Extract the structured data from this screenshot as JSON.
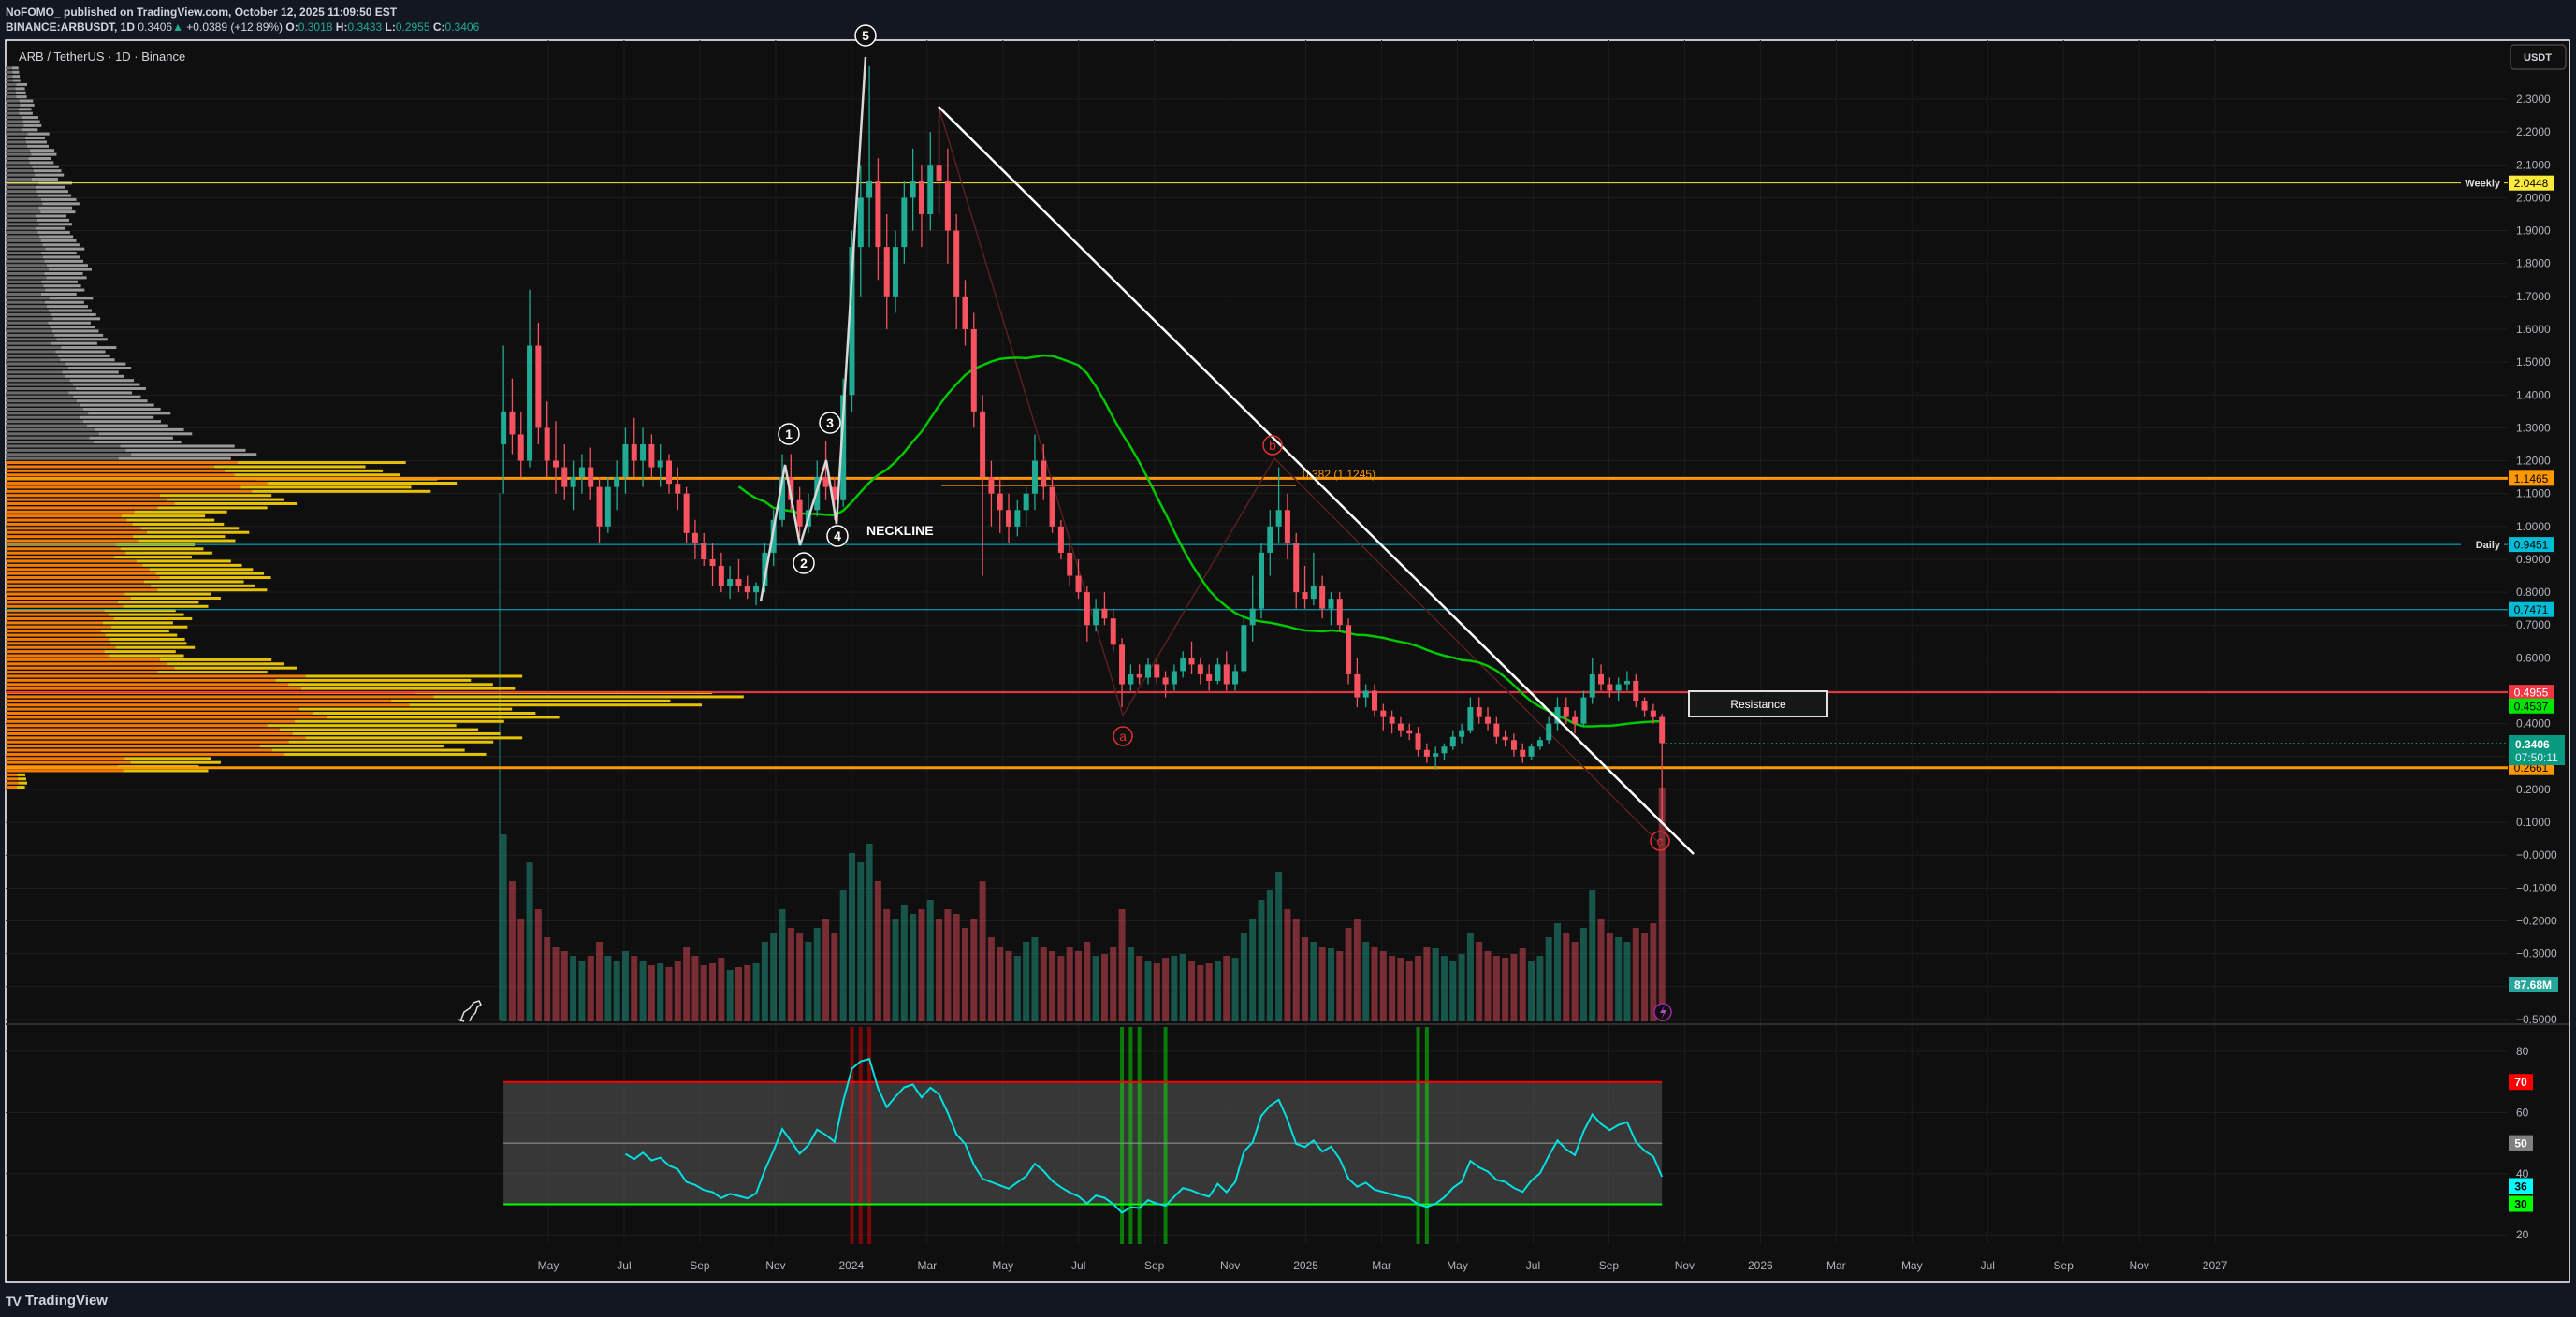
{
  "header": {
    "line1": "NoFOMO_ published on TradingView.com, October 12, 2025 11:09:50 EST",
    "symbol": "BINANCE:ARBUSDT, 1D",
    "last": "0.3406",
    "arrow": "▲",
    "change": "+0.0389 (+12.89%)",
    "o_label": "O:",
    "o": "0.3018",
    "h_label": "H:",
    "h": "0.3433",
    "l_label": "L:",
    "l": "0.2955",
    "c_label": "C:",
    "c": "0.3406"
  },
  "chart": {
    "legend": "ARB / TetherUS · 1D · Binance",
    "currency": "USDT",
    "colors": {
      "up": "#22ab94",
      "down": "#f7525f",
      "ma": "#00c800",
      "rsi": "#00e0e0",
      "background": "#0f0f0f"
    }
  },
  "price_axis": {
    "ticks": [
      "2.3000",
      "2.2000",
      "2.1000",
      "2.0000",
      "1.9000",
      "1.8000",
      "1.7000",
      "1.6000",
      "1.5000",
      "1.4000",
      "1.3000",
      "1.2000",
      "1.1000",
      "1.0000",
      "0.9000",
      "0.8000",
      "0.7000",
      "0.6000",
      "0.4000",
      "0.2000",
      "0.1000",
      "−0.0000",
      "−0.1000",
      "−0.2000",
      "−0.3000",
      "−0.5000"
    ]
  },
  "levels": [
    {
      "label": "Weekly",
      "value": "2.0448",
      "price": 2.0448,
      "color": "#ffeb3b",
      "text_color": "#000000",
      "weight": 1
    },
    {
      "label": "",
      "value": "1.1465",
      "price": 1.1465,
      "color": "#ff9800",
      "text_color": "#000000",
      "weight": 3
    },
    {
      "label": "Daily",
      "value": "0.9451",
      "price": 0.9451,
      "color": "#00bcd4",
      "text_color": "#000000",
      "weight": 1
    },
    {
      "label": "",
      "value": "0.7471",
      "price": 0.7471,
      "color": "#00bcd4",
      "text_color": "#000000",
      "weight": 1
    },
    {
      "label": "",
      "value": "0.4955",
      "price": 0.4955,
      "color": "#f23645",
      "text_color": "#ffffff",
      "weight": 2
    },
    {
      "label": "",
      "value": "0.2661",
      "price": 0.2661,
      "color": "#ff9800",
      "text_color": "#000000",
      "weight": 3
    }
  ],
  "ma_label": {
    "value": "0.4537",
    "price": 0.4537,
    "color": "#00e600"
  },
  "last_price": {
    "value": "0.3406",
    "price": 0.3406,
    "countdown": "07:50:11",
    "color": "#089981"
  },
  "volume_label": {
    "value": "87.68M",
    "color": "#26a69a"
  },
  "annotations": {
    "waves": [
      "1",
      "2",
      "3",
      "4",
      "5"
    ],
    "neckline": "NECKLINE",
    "abc": [
      "a",
      "b",
      "c"
    ],
    "fib": "0.382 (1.1245)",
    "resistance": "Resistance"
  },
  "rsi": {
    "ticks": [
      "80",
      "60",
      "40",
      "20"
    ],
    "upper": "70",
    "mid": "50",
    "value": "36",
    "lower": "30",
    "upper_color": "#ff0000",
    "mid_color": "#787878",
    "value_color": "#00ffff",
    "lower_color": "#00ff00"
  },
  "time_axis": {
    "labels": [
      "May",
      "Jul",
      "Sep",
      "Nov",
      "2024",
      "Mar",
      "May",
      "Jul",
      "Sep",
      "Nov",
      "2025",
      "Mar",
      "May",
      "Jul",
      "Sep",
      "Nov",
      "2026",
      "Mar",
      "May",
      "Jul",
      "Sep",
      "Nov",
      "2027"
    ]
  },
  "footer": {
    "logo": "TradingView",
    "logo_mark": "TV"
  },
  "chart_data": {
    "type": "candlestick",
    "symbol": "ARBUSDT",
    "ylim": [
      -0.5,
      2.3
    ],
    "grid": true,
    "volume_profile": [
      [
        2.35,
        2
      ],
      [
        2.3,
        3
      ],
      [
        2.25,
        4
      ],
      [
        2.2,
        5
      ],
      [
        2.15,
        6
      ],
      [
        2.1,
        7
      ],
      [
        2.05,
        8
      ],
      [
        2.0,
        9
      ],
      [
        1.95,
        10
      ],
      [
        1.9,
        9
      ],
      [
        1.85,
        10
      ],
      [
        1.8,
        11
      ],
      [
        1.75,
        12
      ],
      [
        1.7,
        11
      ],
      [
        1.65,
        12
      ],
      [
        1.6,
        13
      ],
      [
        1.55,
        14
      ],
      [
        1.5,
        15
      ],
      [
        1.45,
        17
      ],
      [
        1.4,
        19
      ],
      [
        1.35,
        21
      ],
      [
        1.3,
        23
      ],
      [
        1.25,
        26
      ],
      [
        1.2,
        35
      ],
      [
        1.15,
        55
      ],
      [
        1.1,
        62
      ],
      [
        1.05,
        40
      ],
      [
        1.0,
        30
      ],
      [
        0.95,
        33
      ],
      [
        0.9,
        28
      ],
      [
        0.85,
        35
      ],
      [
        0.8,
        37
      ],
      [
        0.75,
        30
      ],
      [
        0.7,
        26
      ],
      [
        0.65,
        25
      ],
      [
        0.6,
        26
      ],
      [
        0.55,
        40
      ],
      [
        0.5,
        70
      ],
      [
        0.45,
        100
      ],
      [
        0.4,
        75
      ],
      [
        0.35,
        70
      ],
      [
        0.3,
        68
      ],
      [
        0.25,
        30
      ],
      [
        0.2,
        3
      ]
    ],
    "candles_columns": [
      "date",
      "open",
      "high",
      "low",
      "close",
      "volume_M"
    ],
    "candles": [
      [
        "2023-03-23",
        1.25,
        1.55,
        1.1,
        1.35,
        200
      ],
      [
        "2023-03-30",
        1.35,
        1.45,
        1.22,
        1.28,
        150
      ],
      [
        "2023-04-06",
        1.28,
        1.35,
        1.15,
        1.2,
        110
      ],
      [
        "2023-04-13",
        1.2,
        1.72,
        1.18,
        1.55,
        170
      ],
      [
        "2023-04-20",
        1.55,
        1.62,
        1.25,
        1.3,
        120
      ],
      [
        "2023-04-27",
        1.3,
        1.38,
        1.15,
        1.2,
        90
      ],
      [
        "2023-05-04",
        1.2,
        1.32,
        1.1,
        1.18,
        80
      ],
      [
        "2023-05-11",
        1.18,
        1.25,
        1.08,
        1.12,
        75
      ],
      [
        "2023-05-18",
        1.12,
        1.2,
        1.05,
        1.15,
        70
      ],
      [
        "2023-05-25",
        1.15,
        1.22,
        1.1,
        1.18,
        65
      ],
      [
        "2023-06-01",
        1.18,
        1.24,
        1.08,
        1.12,
        70
      ],
      [
        "2023-06-08",
        1.12,
        1.15,
        0.95,
        1.0,
        85
      ],
      [
        "2023-06-15",
        1.0,
        1.15,
        0.98,
        1.12,
        70
      ],
      [
        "2023-06-22",
        1.12,
        1.2,
        1.05,
        1.15,
        65
      ],
      [
        "2023-06-29",
        1.15,
        1.3,
        1.1,
        1.25,
        75
      ],
      [
        "2023-07-06",
        1.25,
        1.33,
        1.15,
        1.2,
        70
      ],
      [
        "2023-07-13",
        1.2,
        1.3,
        1.12,
        1.25,
        65
      ],
      [
        "2023-07-20",
        1.25,
        1.28,
        1.15,
        1.18,
        60
      ],
      [
        "2023-07-27",
        1.18,
        1.25,
        1.12,
        1.2,
        62
      ],
      [
        "2023-08-03",
        1.2,
        1.22,
        1.1,
        1.13,
        58
      ],
      [
        "2023-08-10",
        1.13,
        1.18,
        1.05,
        1.1,
        65
      ],
      [
        "2023-08-17",
        1.1,
        1.12,
        0.95,
        0.98,
        80
      ],
      [
        "2023-08-24",
        0.98,
        1.02,
        0.9,
        0.95,
        70
      ],
      [
        "2023-08-31",
        0.95,
        0.98,
        0.88,
        0.9,
        60
      ],
      [
        "2023-09-07",
        0.9,
        0.95,
        0.82,
        0.88,
        62
      ],
      [
        "2023-09-14",
        0.88,
        0.92,
        0.8,
        0.82,
        68
      ],
      [
        "2023-09-21",
        0.82,
        0.88,
        0.78,
        0.84,
        55
      ],
      [
        "2023-09-28",
        0.84,
        0.9,
        0.8,
        0.82,
        58
      ],
      [
        "2023-10-05",
        0.82,
        0.85,
        0.78,
        0.8,
        60
      ],
      [
        "2023-10-12",
        0.8,
        0.83,
        0.76,
        0.82,
        62
      ],
      [
        "2023-10-19",
        0.82,
        0.95,
        0.8,
        0.92,
        85
      ],
      [
        "2023-10-26",
        0.92,
        1.05,
        0.88,
        1.02,
        95
      ],
      [
        "2023-11-02",
        1.02,
        1.22,
        1.0,
        1.15,
        120
      ],
      [
        "2023-11-09",
        1.15,
        1.22,
        1.05,
        1.08,
        100
      ],
      [
        "2023-11-16",
        1.08,
        1.12,
        0.97,
        1.0,
        95
      ],
      [
        "2023-11-23",
        1.0,
        1.1,
        0.98,
        1.05,
        85
      ],
      [
        "2023-11-30",
        1.05,
        1.2,
        1.03,
        1.15,
        100
      ],
      [
        "2023-12-07",
        1.15,
        1.26,
        1.08,
        1.12,
        110
      ],
      [
        "2023-12-14",
        1.12,
        1.15,
        1.02,
        1.08,
        95
      ],
      [
        "2023-12-21",
        1.08,
        1.45,
        1.06,
        1.4,
        140
      ],
      [
        "2023-12-28",
        1.4,
        1.9,
        1.35,
        1.85,
        180
      ],
      [
        "2024-01-04",
        1.85,
        2.1,
        1.7,
        2.0,
        170
      ],
      [
        "2024-01-11",
        2.0,
        2.4,
        1.85,
        2.05,
        190
      ],
      [
        "2024-01-18",
        2.05,
        2.12,
        1.75,
        1.85,
        150
      ],
      [
        "2024-01-25",
        1.85,
        1.95,
        1.6,
        1.7,
        120
      ],
      [
        "2024-02-01",
        1.7,
        1.9,
        1.65,
        1.85,
        110
      ],
      [
        "2024-02-08",
        1.85,
        2.05,
        1.8,
        2.0,
        125
      ],
      [
        "2024-02-15",
        2.0,
        2.15,
        1.9,
        2.05,
        115
      ],
      [
        "2024-02-22",
        2.05,
        2.1,
        1.85,
        1.95,
        120
      ],
      [
        "2024-02-29",
        1.95,
        2.2,
        1.9,
        2.1,
        130
      ],
      [
        "2024-03-07",
        2.1,
        2.28,
        1.95,
        2.05,
        110
      ],
      [
        "2024-03-14",
        2.05,
        2.15,
        1.8,
        1.9,
        120
      ],
      [
        "2024-03-21",
        1.9,
        1.95,
        1.6,
        1.7,
        115
      ],
      [
        "2024-03-28",
        1.7,
        1.75,
        1.55,
        1.6,
        100
      ],
      [
        "2024-04-04",
        1.6,
        1.65,
        1.3,
        1.35,
        110
      ],
      [
        "2024-04-11",
        1.35,
        1.4,
        0.85,
        1.15,
        150
      ],
      [
        "2024-04-18",
        1.15,
        1.2,
        1.0,
        1.1,
        90
      ],
      [
        "2024-04-25",
        1.1,
        1.15,
        0.98,
        1.05,
        80
      ],
      [
        "2024-05-02",
        1.05,
        1.1,
        0.95,
        1.0,
        75
      ],
      [
        "2024-05-09",
        1.0,
        1.08,
        0.97,
        1.05,
        70
      ],
      [
        "2024-05-16",
        1.05,
        1.12,
        1.0,
        1.1,
        85
      ],
      [
        "2024-05-23",
        1.1,
        1.28,
        1.05,
        1.2,
        90
      ],
      [
        "2024-05-30",
        1.2,
        1.25,
        1.08,
        1.12,
        80
      ],
      [
        "2024-06-06",
        1.12,
        1.15,
        0.98,
        1.0,
        75
      ],
      [
        "2024-06-13",
        1.0,
        1.02,
        0.9,
        0.92,
        70
      ],
      [
        "2024-06-20",
        0.92,
        0.95,
        0.82,
        0.85,
        80
      ],
      [
        "2024-06-27",
        0.85,
        0.9,
        0.78,
        0.8,
        75
      ],
      [
        "2024-07-04",
        0.8,
        0.82,
        0.65,
        0.7,
        85
      ],
      [
        "2024-07-11",
        0.7,
        0.78,
        0.68,
        0.75,
        70
      ],
      [
        "2024-07-18",
        0.75,
        0.8,
        0.7,
        0.72,
        72
      ],
      [
        "2024-07-25",
        0.72,
        0.75,
        0.62,
        0.64,
        80
      ],
      [
        "2024-08-01",
        0.64,
        0.66,
        0.45,
        0.52,
        120
      ],
      [
        "2024-08-08",
        0.52,
        0.58,
        0.5,
        0.55,
        80
      ],
      [
        "2024-08-15",
        0.55,
        0.58,
        0.52,
        0.54,
        70
      ],
      [
        "2024-08-22",
        0.54,
        0.6,
        0.52,
        0.58,
        65
      ],
      [
        "2024-08-29",
        0.58,
        0.6,
        0.52,
        0.54,
        62
      ],
      [
        "2024-09-05",
        0.54,
        0.56,
        0.48,
        0.52,
        68
      ],
      [
        "2024-09-12",
        0.52,
        0.58,
        0.5,
        0.56,
        70
      ],
      [
        "2024-09-19",
        0.56,
        0.62,
        0.54,
        0.6,
        72
      ],
      [
        "2024-09-26",
        0.6,
        0.65,
        0.55,
        0.58,
        65
      ],
      [
        "2024-10-03",
        0.58,
        0.6,
        0.52,
        0.55,
        60
      ],
      [
        "2024-10-10",
        0.55,
        0.58,
        0.5,
        0.53,
        62
      ],
      [
        "2024-10-17",
        0.53,
        0.6,
        0.52,
        0.58,
        65
      ],
      [
        "2024-10-24",
        0.58,
        0.62,
        0.5,
        0.52,
        70
      ],
      [
        "2024-10-31",
        0.52,
        0.58,
        0.5,
        0.56,
        68
      ],
      [
        "2024-11-07",
        0.56,
        0.72,
        0.55,
        0.7,
        95
      ],
      [
        "2024-11-14",
        0.7,
        0.85,
        0.65,
        0.75,
        110
      ],
      [
        "2024-11-21",
        0.75,
        0.95,
        0.72,
        0.92,
        130
      ],
      [
        "2024-11-28",
        0.92,
        1.05,
        0.85,
        1.0,
        140
      ],
      [
        "2024-12-05",
        1.0,
        1.18,
        0.95,
        1.05,
        160
      ],
      [
        "2024-12-12",
        1.05,
        1.1,
        0.9,
        0.95,
        120
      ],
      [
        "2024-12-19",
        0.95,
        0.98,
        0.75,
        0.8,
        110
      ],
      [
        "2024-12-26",
        0.8,
        0.88,
        0.75,
        0.78,
        90
      ],
      [
        "2025-01-02",
        0.78,
        0.92,
        0.76,
        0.82,
        85
      ],
      [
        "2025-01-09",
        0.82,
        0.85,
        0.72,
        0.75,
        80
      ],
      [
        "2025-01-16",
        0.75,
        0.8,
        0.7,
        0.78,
        78
      ],
      [
        "2025-01-23",
        0.78,
        0.8,
        0.68,
        0.7,
        75
      ],
      [
        "2025-01-30",
        0.7,
        0.72,
        0.52,
        0.55,
        100
      ],
      [
        "2025-02-06",
        0.55,
        0.6,
        0.45,
        0.48,
        110
      ],
      [
        "2025-02-13",
        0.48,
        0.52,
        0.45,
        0.5,
        85
      ],
      [
        "2025-02-20",
        0.5,
        0.52,
        0.42,
        0.44,
        80
      ],
      [
        "2025-02-27",
        0.44,
        0.46,
        0.38,
        0.42,
        75
      ],
      [
        "2025-03-06",
        0.42,
        0.44,
        0.37,
        0.4,
        70
      ],
      [
        "2025-03-13",
        0.4,
        0.42,
        0.36,
        0.38,
        68
      ],
      [
        "2025-03-20",
        0.38,
        0.4,
        0.35,
        0.37,
        65
      ],
      [
        "2025-03-27",
        0.37,
        0.39,
        0.3,
        0.32,
        70
      ],
      [
        "2025-04-03",
        0.32,
        0.34,
        0.28,
        0.3,
        80
      ],
      [
        "2025-04-10",
        0.3,
        0.33,
        0.26,
        0.31,
        78
      ],
      [
        "2025-04-17",
        0.31,
        0.34,
        0.29,
        0.33,
        70
      ],
      [
        "2025-04-24",
        0.33,
        0.38,
        0.32,
        0.36,
        65
      ],
      [
        "2025-05-01",
        0.36,
        0.4,
        0.34,
        0.38,
        72
      ],
      [
        "2025-05-08",
        0.38,
        0.48,
        0.37,
        0.45,
        95
      ],
      [
        "2025-05-15",
        0.45,
        0.48,
        0.4,
        0.42,
        85
      ],
      [
        "2025-05-22",
        0.42,
        0.45,
        0.38,
        0.4,
        75
      ],
      [
        "2025-05-29",
        0.4,
        0.42,
        0.34,
        0.36,
        70
      ],
      [
        "2025-06-05",
        0.36,
        0.38,
        0.33,
        0.35,
        68
      ],
      [
        "2025-06-12",
        0.35,
        0.37,
        0.3,
        0.32,
        72
      ],
      [
        "2025-06-19",
        0.32,
        0.34,
        0.28,
        0.3,
        78
      ],
      [
        "2025-06-26",
        0.3,
        0.34,
        0.29,
        0.33,
        65
      ],
      [
        "2025-07-03",
        0.33,
        0.36,
        0.32,
        0.35,
        70
      ],
      [
        "2025-07-10",
        0.35,
        0.42,
        0.34,
        0.4,
        90
      ],
      [
        "2025-07-17",
        0.4,
        0.48,
        0.38,
        0.45,
        105
      ],
      [
        "2025-07-24",
        0.45,
        0.48,
        0.4,
        0.42,
        95
      ],
      [
        "2025-07-31",
        0.42,
        0.44,
        0.37,
        0.4,
        85
      ],
      [
        "2025-08-07",
        0.4,
        0.5,
        0.39,
        0.48,
        100
      ],
      [
        "2025-08-14",
        0.48,
        0.6,
        0.46,
        0.55,
        140
      ],
      [
        "2025-08-21",
        0.55,
        0.58,
        0.5,
        0.52,
        110
      ],
      [
        "2025-08-28",
        0.52,
        0.54,
        0.48,
        0.5,
        95
      ],
      [
        "2025-09-04",
        0.5,
        0.54,
        0.47,
        0.52,
        90
      ],
      [
        "2025-09-11",
        0.52,
        0.56,
        0.5,
        0.53,
        85
      ],
      [
        "2025-09-18",
        0.53,
        0.55,
        0.45,
        0.47,
        100
      ],
      [
        "2025-09-25",
        0.47,
        0.48,
        0.42,
        0.44,
        95
      ],
      [
        "2025-10-02",
        0.44,
        0.46,
        0.4,
        0.42,
        105
      ],
      [
        "2025-10-09",
        0.42,
        0.43,
        0.1,
        0.3406,
        250
      ]
    ]
  }
}
